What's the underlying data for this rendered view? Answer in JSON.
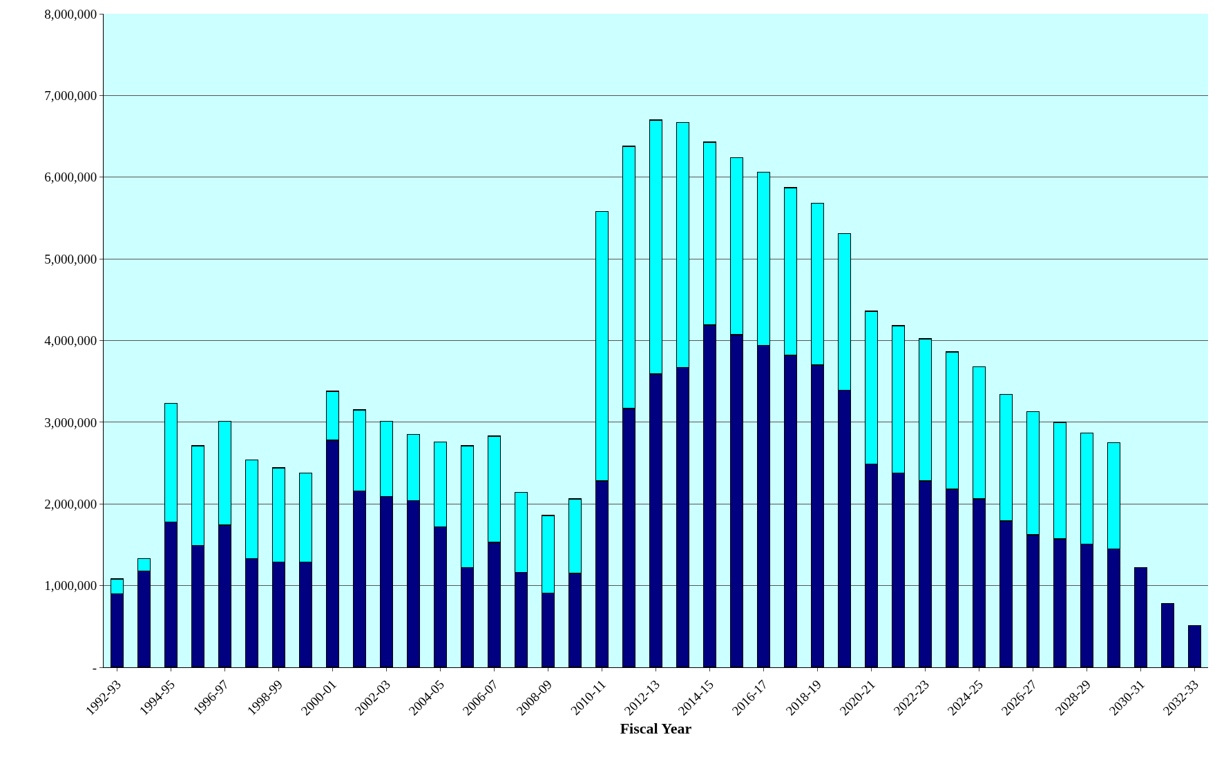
{
  "chart_data": {
    "type": "bar",
    "stacked": true,
    "xlabel": "Fiscal Year",
    "categories": [
      "1992-93",
      null,
      "1994-95",
      null,
      "1996-97",
      null,
      "1998-99",
      null,
      "2000-01",
      null,
      "2002-03",
      null,
      "2004-05",
      null,
      "2006-07",
      null,
      "2008-09",
      null,
      "2010-11",
      null,
      "2012-13",
      null,
      "2014-15",
      null,
      "2016-17",
      null,
      "2018-19",
      null,
      "2020-21",
      null,
      "2022-23",
      null,
      "2024-25",
      null,
      "2026-27",
      null,
      "2028-29",
      null,
      "2030-31",
      null,
      "2032-33"
    ],
    "series": [
      {
        "color": "#000080",
        "values": [
          900000,
          1180000,
          1780000,
          1490000,
          1740000,
          1330000,
          1290000,
          1290000,
          2780000,
          2160000,
          2090000,
          2040000,
          1720000,
          1220000,
          1530000,
          1160000,
          910000,
          1150000,
          2280000,
          3170000,
          3590000,
          3670000,
          4190000,
          4070000,
          3940000,
          3820000,
          3700000,
          3390000,
          2490000,
          2380000,
          2280000,
          2180000,
          2060000,
          1790000,
          1620000,
          1570000,
          1510000,
          1450000,
          1220000,
          780000,
          510000
        ]
      },
      {
        "color": "#00ffff",
        "values": [
          180000,
          150000,
          1450000,
          1220000,
          1270000,
          1210000,
          1150000,
          1090000,
          600000,
          990000,
          920000,
          810000,
          1040000,
          1490000,
          1300000,
          980000,
          950000,
          910000,
          3300000,
          3210000,
          3110000,
          3000000,
          2240000,
          2170000,
          2120000,
          2050000,
          1980000,
          1920000,
          1870000,
          1800000,
          1740000,
          1680000,
          1620000,
          1550000,
          1510000,
          1430000,
          1360000,
          1300000,
          null,
          null,
          null
        ]
      }
    ],
    "ylim": [
      0,
      8000000
    ],
    "yticks": [
      {
        "value": 0,
        "label": "-"
      },
      {
        "value": 1000000,
        "label": "1,000,000"
      },
      {
        "value": 2000000,
        "label": "2,000,000"
      },
      {
        "value": 3000000,
        "label": "3,000,000"
      },
      {
        "value": 4000000,
        "label": "4,000,000"
      },
      {
        "value": 5000000,
        "label": "5,000,000"
      },
      {
        "value": 6000000,
        "label": "6,000,000"
      },
      {
        "value": 7000000,
        "label": "7,000,000"
      },
      {
        "value": 8000000,
        "label": "8,000,000"
      }
    ],
    "grid": "y"
  }
}
